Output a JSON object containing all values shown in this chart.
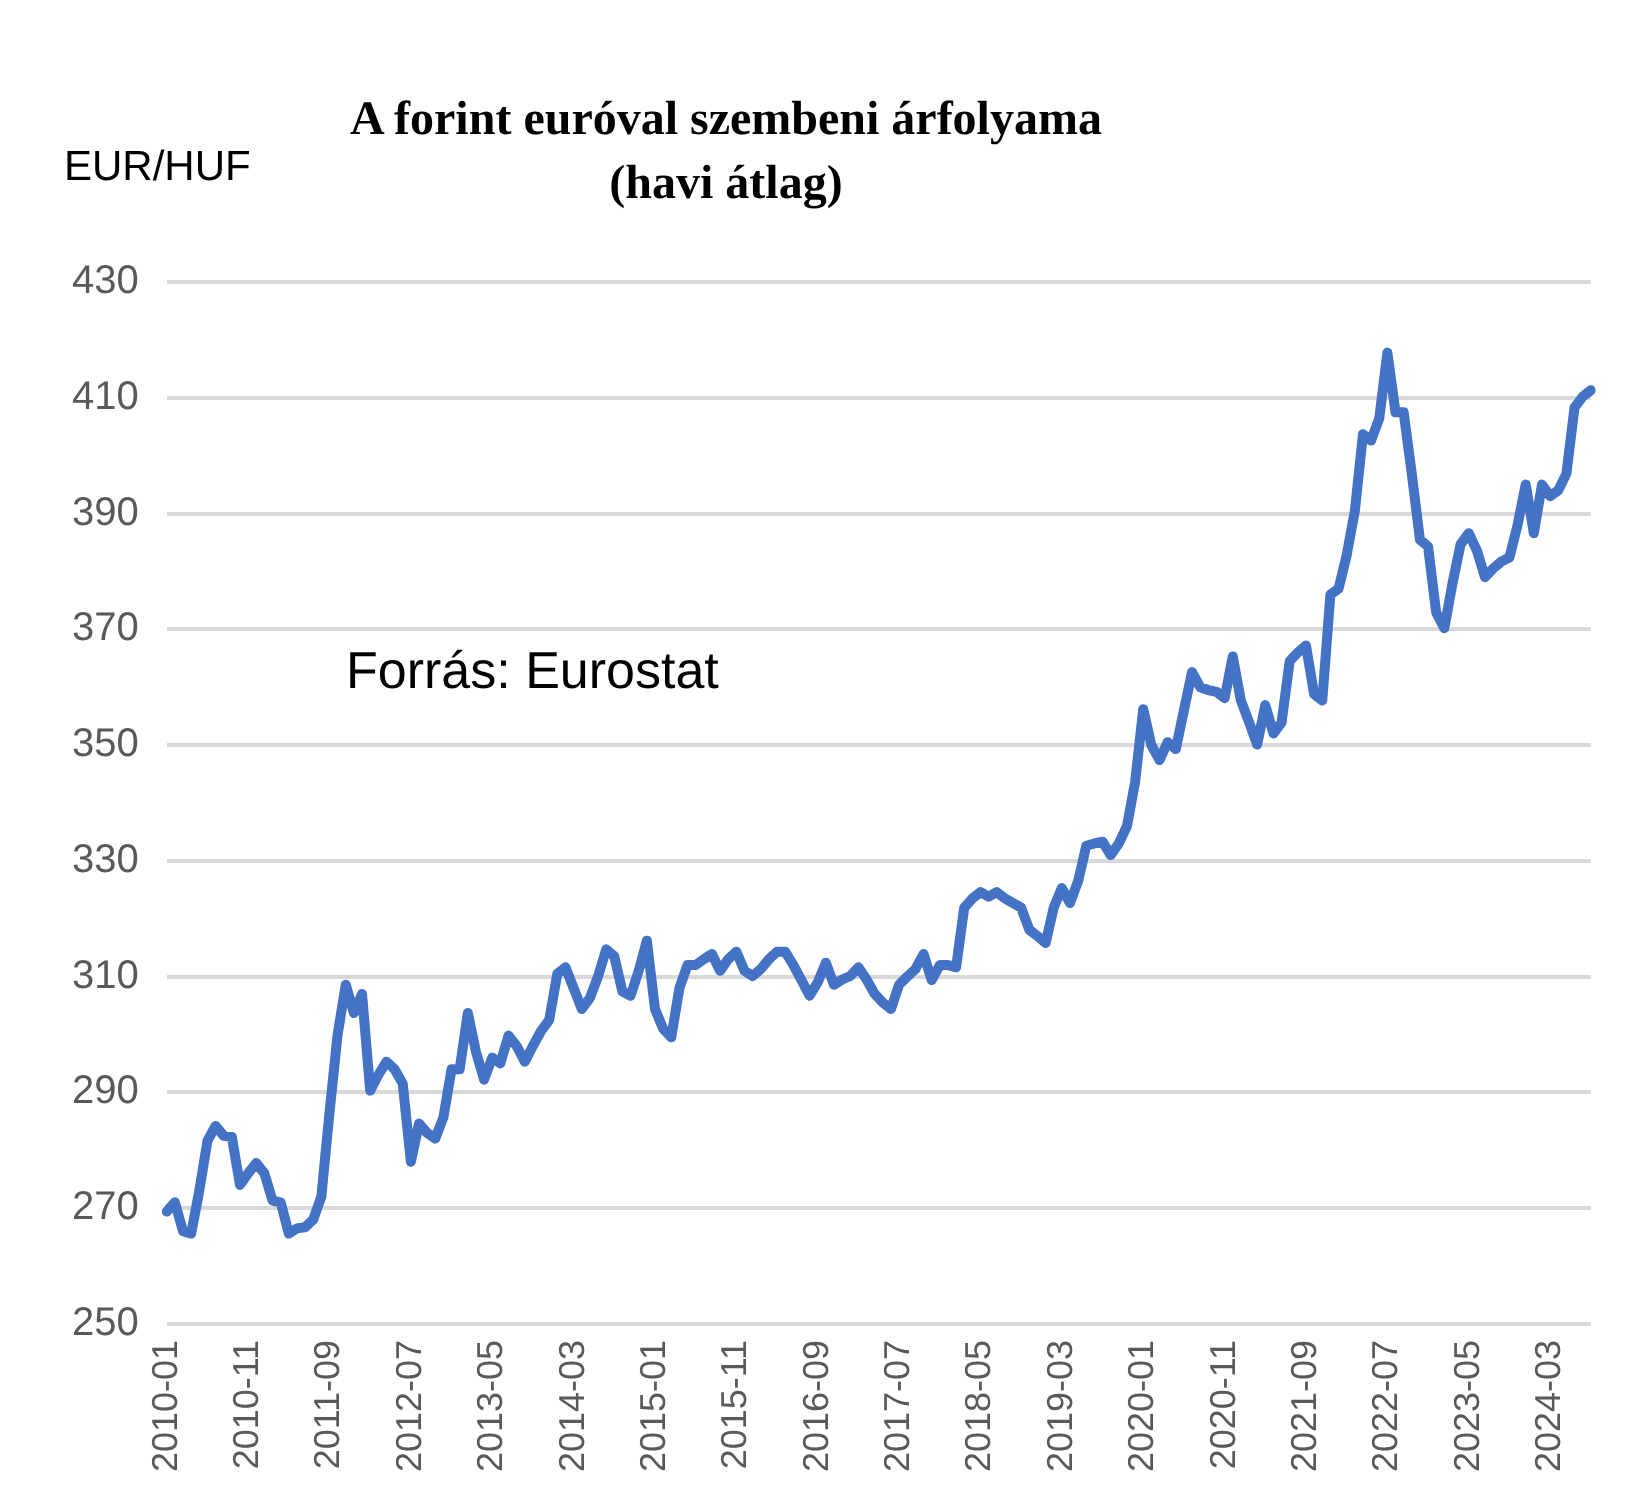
{
  "chart_data": {
    "type": "line",
    "title": "A forint euróval szembeni árfolyama (havi átlag)",
    "ylabel": "EUR/HUF",
    "annotations": [
      "Forrás: Eurostat"
    ],
    "categories": [
      "2010-01",
      null,
      null,
      null,
      null,
      null,
      null,
      null,
      null,
      null,
      "2010-11",
      null,
      null,
      null,
      null,
      null,
      null,
      null,
      null,
      null,
      "2011-09",
      null,
      null,
      null,
      null,
      null,
      null,
      null,
      null,
      null,
      "2012-07",
      null,
      null,
      null,
      null,
      null,
      null,
      null,
      null,
      null,
      "2013-05",
      null,
      null,
      null,
      null,
      null,
      null,
      null,
      null,
      null,
      "2014-03",
      null,
      null,
      null,
      null,
      null,
      null,
      null,
      null,
      null,
      "2015-01",
      null,
      null,
      null,
      null,
      null,
      null,
      null,
      null,
      null,
      "2015-11",
      null,
      null,
      null,
      null,
      null,
      null,
      null,
      null,
      null,
      "2016-09",
      null,
      null,
      null,
      null,
      null,
      null,
      null,
      null,
      null,
      "2017-07",
      null,
      null,
      null,
      null,
      null,
      null,
      null,
      null,
      null,
      "2018-05",
      null,
      null,
      null,
      null,
      null,
      null,
      null,
      null,
      null,
      "2019-03",
      null,
      null,
      null,
      null,
      null,
      null,
      null,
      null,
      null,
      "2020-01",
      null,
      null,
      null,
      null,
      null,
      null,
      null,
      null,
      null,
      "2020-11",
      null,
      null,
      null,
      null,
      null,
      null,
      null,
      null,
      null,
      "2021-09",
      null,
      null,
      null,
      null,
      null,
      null,
      null,
      null,
      null,
      "2022-07",
      null,
      null,
      null,
      null,
      null,
      null,
      null,
      null,
      null,
      "2023-05",
      null,
      null,
      null,
      null,
      null,
      null,
      null,
      null,
      null,
      "2024-03",
      null,
      null,
      null,
      null,
      null
    ],
    "values": [
      269.4,
      271,
      266,
      265.6,
      273,
      281.6,
      284.2,
      282.5,
      282.3,
      274,
      276,
      277.8,
      276,
      271.3,
      271,
      265.6,
      266.5,
      266.7,
      268,
      272,
      286.5,
      300,
      308.6,
      303.7,
      307,
      290.3,
      293,
      295.3,
      294,
      291.5,
      278,
      284.6,
      283,
      282,
      285.7,
      294,
      294,
      303.7,
      297,
      292.2,
      296,
      295,
      299.8,
      298,
      295.3,
      298,
      300.6,
      302.5,
      310.5,
      311.6,
      308,
      304.4,
      306.3,
      310,
      314.7,
      313.5,
      307.4,
      306.7,
      311,
      316.2,
      304.4,
      301,
      299.5,
      308,
      312,
      312,
      313,
      313.9,
      311,
      313,
      314.3,
      311,
      310.1,
      311.3,
      313,
      314.3,
      314.3,
      312,
      309.4,
      306.7,
      309,
      312.4,
      308.6,
      309.5,
      310.1,
      311.6,
      309.5,
      307,
      305.5,
      304.4,
      308.6,
      310,
      311.3,
      313.9,
      309.4,
      312,
      312,
      311.6,
      321.9,
      323.5,
      324.6,
      323.8,
      324.6,
      323.5,
      322.7,
      321.9,
      318.1,
      317,
      315.8,
      321.9,
      325.3,
      322.7,
      326.5,
      332.6,
      333,
      333.3,
      331,
      333,
      336,
      343.6,
      356.2,
      350,
      347.4,
      350.5,
      349.3,
      356,
      362.6,
      360,
      359.5,
      359.2,
      358.1,
      365.3,
      357.7,
      354,
      350.1,
      356.9,
      352,
      353.9,
      364.5,
      366,
      367.2,
      358.8,
      357.7,
      376,
      377,
      382.8,
      390.4,
      403.7,
      402.6,
      406.4,
      417.8,
      407.5,
      407.5,
      396.9,
      385.5,
      384.3,
      372.9,
      370.2,
      377.9,
      384.7,
      386.6,
      383.6,
      379,
      380.5,
      381.7,
      382.4,
      388,
      395,
      386.6,
      395,
      393,
      394,
      396.9,
      408.3,
      410.2,
      411.3
    ],
    "color": "#4472c4",
    "ylim": [
      250,
      430
    ],
    "yticks": [
      250,
      270,
      290,
      310,
      330,
      350,
      370,
      390,
      410,
      430
    ],
    "grid": "y",
    "marker": "none",
    "line_style": "solid"
  }
}
